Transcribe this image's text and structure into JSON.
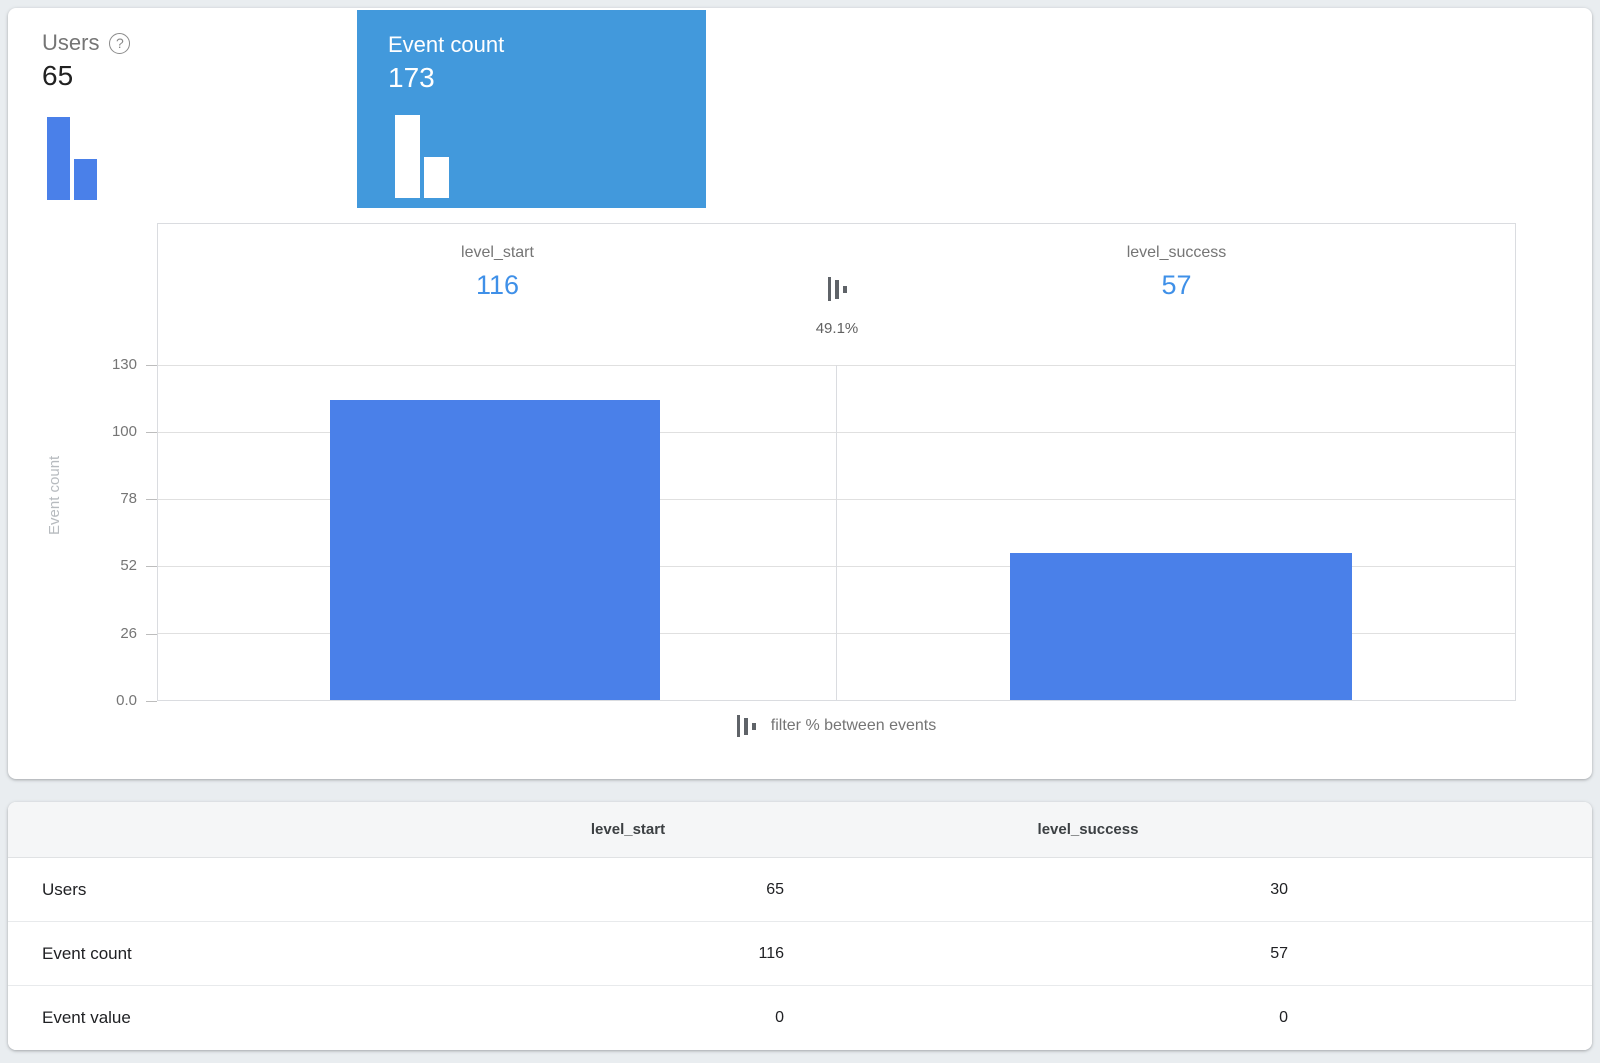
{
  "metrics": {
    "users": {
      "label": "Users",
      "value": "65"
    },
    "event_count": {
      "label": "Event count",
      "value": "173"
    }
  },
  "chart_data": {
    "type": "bar",
    "title": "",
    "categories": [
      "level_start",
      "level_success"
    ],
    "values": [
      116,
      57
    ],
    "value_labels": [
      "116",
      "57"
    ],
    "between_percent": "49.1%",
    "xlabel": "",
    "ylabel": "Event count",
    "ylim": [
      0,
      130
    ],
    "ytick_labels": [
      "130",
      "100",
      "78",
      "52",
      "26",
      "0.0"
    ],
    "grid": true,
    "legend_position": "bottom",
    "bar_color": "#4a80e9"
  },
  "legend": {
    "label": "filter % between events"
  },
  "help_icon_glyph": "?",
  "table": {
    "headers": [
      "level_start",
      "level_success"
    ],
    "rows": [
      {
        "label": "Users",
        "values": [
          "65",
          "30"
        ]
      },
      {
        "label": "Event count",
        "values": [
          "116",
          "57"
        ]
      },
      {
        "label": "Event value",
        "values": [
          "0",
          "0"
        ]
      }
    ]
  },
  "colors": {
    "accent_value_blue": "#3f90e8",
    "bar_blue": "#4a80e9",
    "selected_card_blue": "#4299dc",
    "page_background": "#e9edf0"
  }
}
